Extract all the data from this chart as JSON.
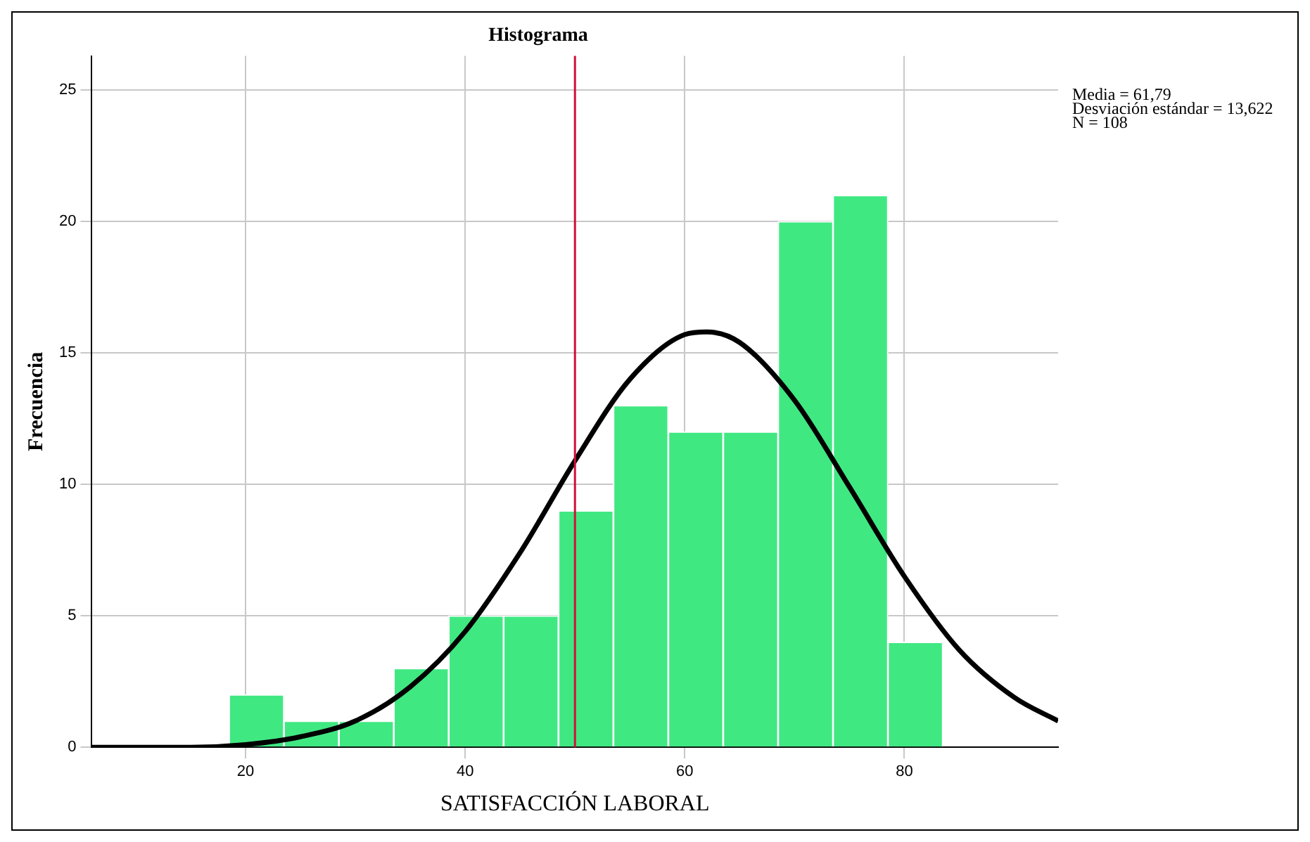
{
  "chart_data": {
    "type": "histogram",
    "title": "Histograma",
    "xlabel": "SATISFACCIÓN LABORAL",
    "ylabel": "Frecuencia",
    "bins": [
      18.5,
      23.5,
      28.5,
      33.5,
      38.5,
      43.5,
      48.5,
      53.5,
      58.5,
      63.5,
      68.5,
      73.5,
      78.5,
      83.5
    ],
    "values": [
      2,
      1,
      1,
      3,
      5,
      5,
      9,
      13,
      12,
      12,
      20,
      21,
      4
    ],
    "color": "#40e882",
    "series": [
      {
        "type": "line",
        "color": "#000000",
        "x": [
          6,
          15,
          20,
          25,
          30,
          35,
          40,
          45,
          50,
          55,
          60,
          62,
          65,
          70,
          75,
          80,
          85,
          90,
          94
        ],
        "values": [
          0.0,
          0.0,
          0.1,
          0.4,
          1.0,
          2.3,
          4.4,
          7.4,
          10.9,
          14.0,
          15.7,
          15.8,
          15.4,
          13.2,
          9.9,
          6.5,
          3.7,
          1.9,
          1.0
        ]
      }
    ],
    "xlim": [
      6,
      94
    ],
    "xticks": [
      20,
      40,
      60,
      80
    ],
    "ylim": [
      0,
      26.3
    ],
    "yticks": [
      0,
      5,
      10,
      15,
      20,
      25
    ],
    "grid": true,
    "ref_lines": [
      {
        "axis": "x",
        "value": 50,
        "color": "#d0103a"
      }
    ],
    "annotations": [
      "Media = 61,79",
      "Desviación estándar = 13,622",
      "N = 108"
    ]
  }
}
